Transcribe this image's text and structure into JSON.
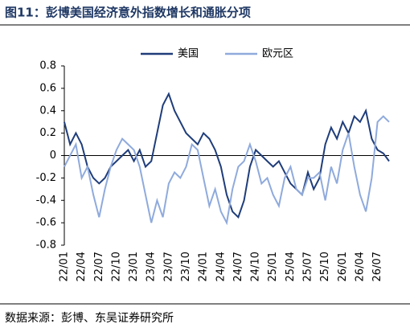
{
  "chart_data": {
    "type": "line",
    "title": "图11：彭博美国经济意外指数增长和通胀分项",
    "source": "数据来源：彭博、东吴证券研究所",
    "categories": [
      "22/01",
      null,
      null,
      "22/04",
      null,
      null,
      "22/07",
      null,
      null,
      "22/10",
      null,
      null,
      "23/01",
      null,
      null,
      "23/04",
      null,
      null,
      "23/07",
      null,
      null,
      "23/10",
      null,
      null,
      "24/01",
      null,
      null,
      "24/04",
      null,
      null,
      "24/07",
      null,
      null,
      "24/10",
      null,
      null,
      "25/01",
      null,
      null,
      "25/04",
      null,
      null,
      "25/07",
      null,
      null,
      "25/10",
      null,
      null,
      "26/01",
      null,
      null,
      "26/04",
      null,
      null,
      "26/07",
      null,
      null
    ],
    "series": [
      {
        "name": "美国",
        "color": "#1f3d7a",
        "values": [
          0.3,
          0.1,
          0.2,
          0.1,
          -0.1,
          -0.2,
          -0.25,
          -0.2,
          -0.1,
          -0.05,
          0.0,
          0.05,
          -0.05,
          0.05,
          -0.1,
          -0.05,
          0.2,
          0.45,
          0.55,
          0.4,
          0.3,
          0.2,
          0.15,
          0.1,
          0.2,
          0.15,
          0.05,
          -0.1,
          -0.35,
          -0.5,
          -0.55,
          -0.4,
          -0.1,
          0.05,
          0.0,
          -0.05,
          -0.1,
          -0.05,
          -0.15,
          -0.25,
          -0.3,
          -0.35,
          -0.15,
          -0.3,
          -0.2,
          0.1,
          0.25,
          0.15,
          0.3,
          0.2,
          0.35,
          0.3,
          0.4,
          0.15,
          0.05,
          0.02,
          -0.05
        ]
      },
      {
        "name": "欧元区",
        "color": "#8faadc",
        "values": [
          -0.1,
          0.0,
          0.1,
          -0.2,
          -0.1,
          -0.35,
          -0.55,
          -0.3,
          -0.1,
          0.05,
          0.15,
          0.1,
          0.05,
          -0.1,
          -0.35,
          -0.6,
          -0.4,
          -0.55,
          -0.25,
          -0.15,
          -0.2,
          -0.1,
          0.1,
          0.05,
          -0.2,
          -0.45,
          -0.3,
          -0.5,
          -0.6,
          -0.3,
          -0.1,
          -0.05,
          0.1,
          -0.05,
          -0.25,
          -0.2,
          -0.35,
          -0.45,
          -0.2,
          -0.1,
          -0.3,
          -0.35,
          -0.2,
          -0.2,
          -0.15,
          -0.4,
          -0.1,
          -0.25,
          0.05,
          0.2,
          -0.1,
          -0.35,
          -0.5,
          -0.2,
          0.3,
          0.35,
          0.3
        ]
      }
    ],
    "ylim": [
      -0.8,
      0.8
    ],
    "yticks": [
      0.8,
      0.6,
      0.4,
      0.2,
      0,
      -0.2,
      -0.4,
      -0.6,
      -0.8
    ]
  }
}
